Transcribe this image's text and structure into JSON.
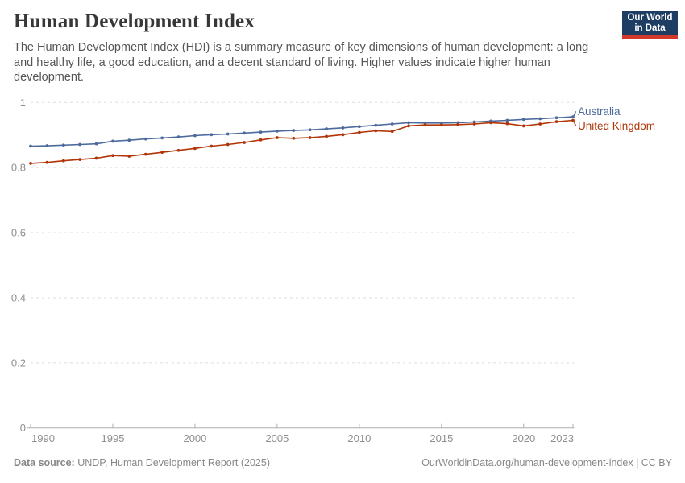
{
  "header": {
    "title": "Human Development Index",
    "subtitle": "The Human Development Index (HDI) is a summary measure of key dimensions of human development: a long and healthy life, a good education, and a decent standard of living. Higher values indicate higher human development.",
    "logo": {
      "line1": "Our World",
      "line2": "in Data"
    }
  },
  "footer": {
    "source_label": "Data source:",
    "source_text": " UNDP, Human Development Report (2025)",
    "credit": "OurWorldinData.org/human-development-index | CC BY"
  },
  "colors": {
    "australia": "#4C6A9C",
    "united_kingdom": "#B13507",
    "grid": "#dedede",
    "axis": "#aeaeae",
    "tick_text": "#8e8e8e",
    "logo_bg": "#1d3d63",
    "logo_red": "#d4382d"
  },
  "chart_data": {
    "type": "line",
    "title": "Human Development Index",
    "xlabel": "",
    "ylabel": "",
    "xlim": [
      1990,
      2023
    ],
    "ylim": [
      0,
      1
    ],
    "grid": true,
    "legend_position": "right",
    "xticks": [
      1990,
      1995,
      2000,
      2005,
      2010,
      2015,
      2020,
      2023
    ],
    "yticks": [
      0,
      0.2,
      0.4,
      0.6,
      0.8,
      1
    ],
    "x": [
      1990,
      1991,
      1992,
      1993,
      1994,
      1995,
      1996,
      1997,
      1998,
      1999,
      2000,
      2001,
      2002,
      2003,
      2004,
      2005,
      2006,
      2007,
      2008,
      2009,
      2010,
      2011,
      2012,
      2013,
      2014,
      2015,
      2016,
      2017,
      2018,
      2019,
      2020,
      2021,
      2022,
      2023
    ],
    "series": [
      {
        "name": "Australia",
        "color": "#4C6A9C",
        "values": [
          0.866,
          0.867,
          0.869,
          0.871,
          0.873,
          0.881,
          0.884,
          0.888,
          0.891,
          0.894,
          0.898,
          0.901,
          0.903,
          0.906,
          0.909,
          0.912,
          0.914,
          0.916,
          0.919,
          0.922,
          0.926,
          0.93,
          0.934,
          0.938,
          0.937,
          0.937,
          0.938,
          0.94,
          0.943,
          0.945,
          0.948,
          0.95,
          0.953,
          0.956
        ]
      },
      {
        "name": "United Kingdom",
        "color": "#B13507",
        "values": [
          0.813,
          0.816,
          0.821,
          0.825,
          0.829,
          0.837,
          0.835,
          0.841,
          0.847,
          0.853,
          0.859,
          0.866,
          0.871,
          0.877,
          0.885,
          0.892,
          0.89,
          0.892,
          0.896,
          0.901,
          0.908,
          0.913,
          0.911,
          0.928,
          0.931,
          0.931,
          0.932,
          0.934,
          0.938,
          0.935,
          0.928,
          0.934,
          0.941,
          0.945
        ]
      }
    ]
  }
}
